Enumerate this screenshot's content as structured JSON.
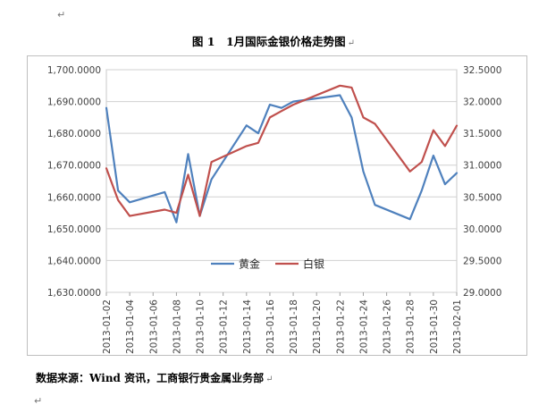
{
  "header": {
    "para_mark": "↵"
  },
  "title": "图 1　1月国际金银价格走势图",
  "source_note": "数据来源：Wind 资讯，工商银行贵金属业务部",
  "footer": {
    "para_mark": "↵"
  },
  "chart_data": {
    "type": "line",
    "x": [
      "2013-01-02",
      "2013-01-03",
      "2013-01-04",
      "2013-01-07",
      "2013-01-08",
      "2013-01-09",
      "2013-01-10",
      "2013-01-11",
      "2013-01-14",
      "2013-01-15",
      "2013-01-16",
      "2013-01-17",
      "2013-01-18",
      "2013-01-22",
      "2013-01-23",
      "2013-01-24",
      "2013-01-25",
      "2013-01-28",
      "2013-01-29",
      "2013-01-30",
      "2013-01-31",
      "2013-02-01"
    ],
    "x_tick_labels": [
      "2013-01-02",
      "2013-01-04",
      "2013-01-06",
      "2013-01-08",
      "2013-01-10",
      "2013-01-12",
      "2013-01-14",
      "2013-01-16",
      "2013-01-18",
      "2013-01-20",
      "2013-01-22",
      "2013-01-24",
      "2013-01-26",
      "2013-01-28",
      "2013-01-30",
      "2013-02-01"
    ],
    "series": [
      {
        "name": "黄金",
        "axis": "left",
        "color": "#4F81BD",
        "values": [
          1688.0,
          1662.0,
          1658.3,
          1661.5,
          1652.0,
          1673.5,
          1654.0,
          1665.5,
          1682.5,
          1680.0,
          1689.0,
          1688.0,
          1690.0,
          1692.0,
          1685.0,
          1668.0,
          1657.5,
          1653.0,
          1662.0,
          1673.0,
          1664.0,
          1667.5
        ]
      },
      {
        "name": "白银",
        "axis": "right",
        "color": "#C0504D",
        "values": [
          30.95,
          30.45,
          30.2,
          30.3,
          30.25,
          30.85,
          30.2,
          31.05,
          31.3,
          31.35,
          31.75,
          31.85,
          31.95,
          32.25,
          32.22,
          31.75,
          31.65,
          30.9,
          31.05,
          31.55,
          31.3,
          31.62
        ]
      }
    ],
    "y_left": {
      "min": 1630,
      "max": 1700,
      "step": 10,
      "decimals": 4
    },
    "y_right": {
      "min": 29.0,
      "max": 32.5,
      "step": 0.5,
      "decimals": 4
    },
    "grid": true,
    "legend_position": "bottom-inside"
  }
}
